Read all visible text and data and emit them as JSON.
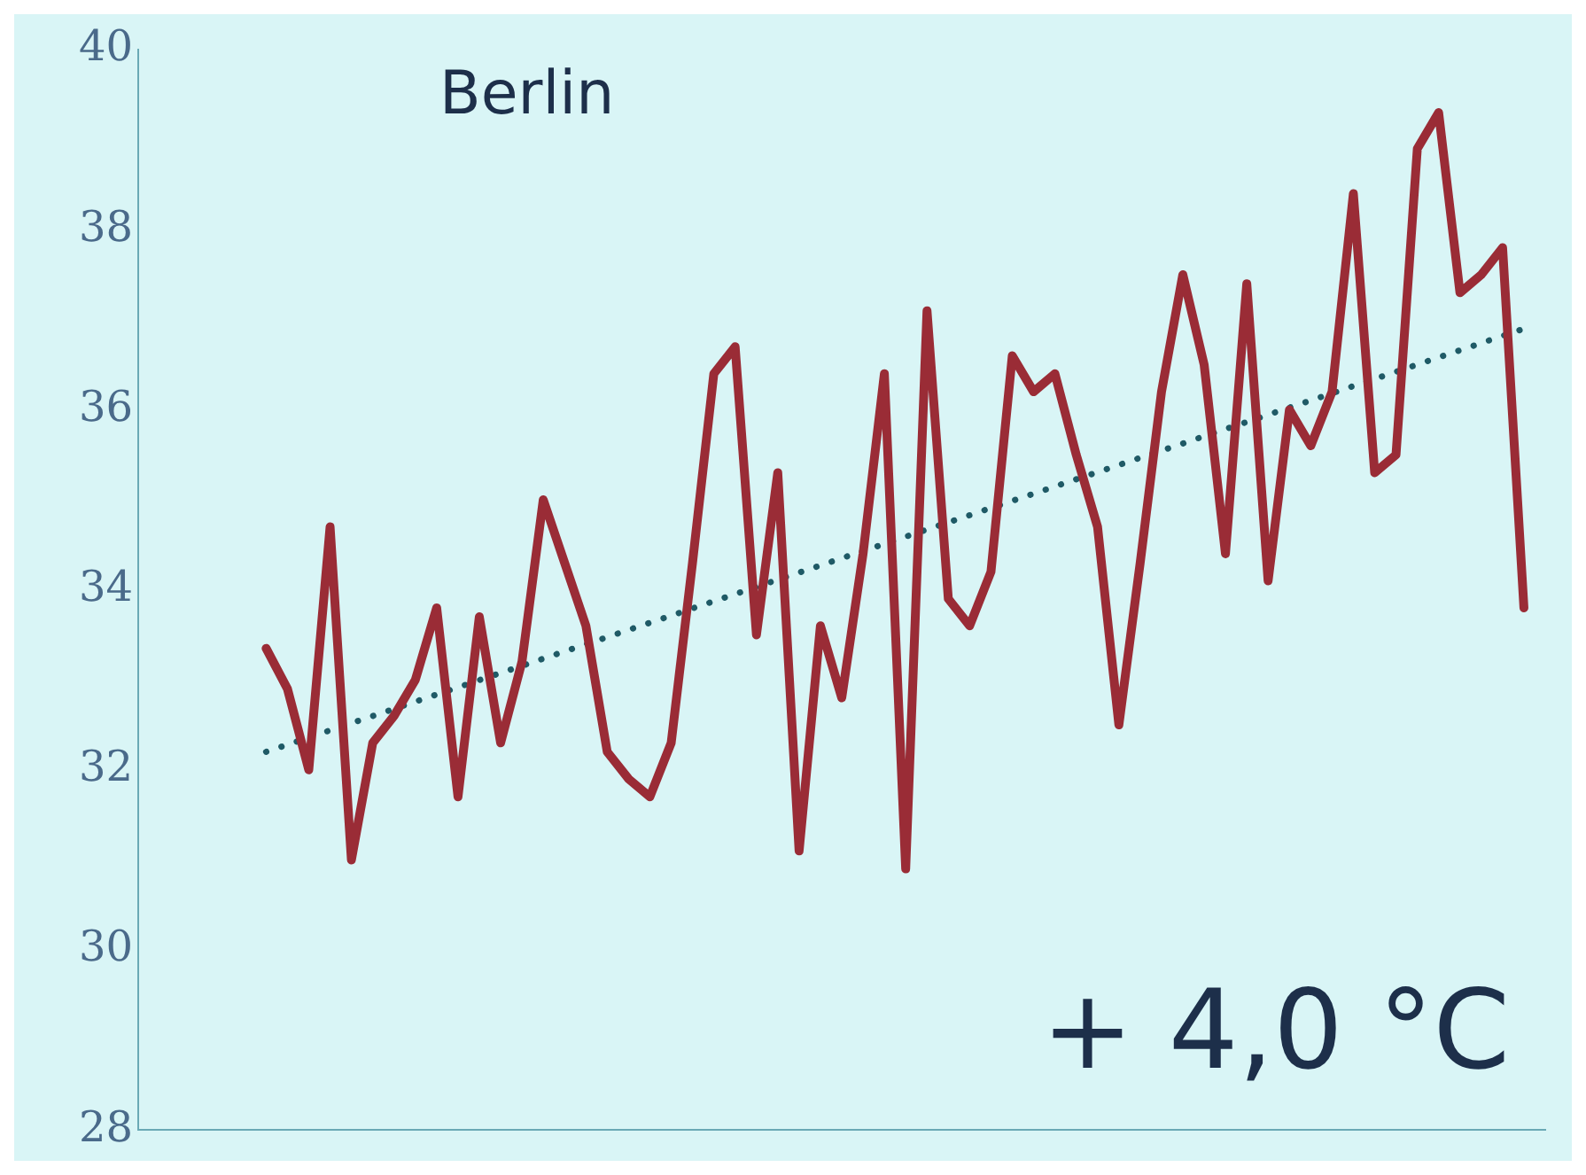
{
  "chart_data": {
    "type": "line",
    "categories": [
      null,
      null,
      null,
      null,
      null,
      null,
      null,
      null,
      null,
      null,
      null,
      null,
      null,
      null,
      null,
      null,
      null,
      null,
      null,
      null,
      null,
      null,
      null,
      null,
      null,
      null,
      null,
      null,
      null,
      null,
      null,
      null,
      null,
      null,
      null,
      null,
      null,
      null,
      null,
      null,
      null,
      null,
      null,
      null,
      null,
      null,
      null,
      null,
      null,
      null,
      null,
      null,
      null,
      null,
      null,
      null,
      null,
      null,
      null,
      null,
      null,
      null,
      null,
      null,
      null,
      null,
      null
    ],
    "series": [
      {
        "color": "#9a2c36",
        "line_style": "solid",
        "values": [
          null,
          null,
          null,
          null,
          null,
          null,
          33.35,
          32.9,
          32.0,
          34.7,
          31.0,
          32.3,
          32.6,
          33.0,
          33.8,
          31.7,
          33.7,
          32.3,
          33.2,
          35.0,
          34.3,
          33.6,
          32.2,
          31.9,
          31.7,
          32.3,
          34.3,
          36.4,
          36.7,
          33.5,
          35.3,
          31.1,
          33.6,
          32.8,
          34.4,
          36.4,
          30.9,
          37.1,
          33.9,
          33.6,
          34.2,
          36.6,
          36.2,
          36.4,
          35.5,
          34.7,
          32.5,
          34.3,
          36.2,
          37.5,
          36.5,
          34.4,
          37.4,
          34.1,
          36.0,
          35.6,
          36.2,
          38.4,
          35.3,
          35.5,
          38.9,
          39.3,
          37.3,
          37.5,
          37.8,
          33.8,
          null
        ]
      },
      {
        "color": "#1f5a66",
        "line_style": "dotted",
        "values": [
          null,
          null,
          null,
          null,
          null,
          null,
          32.2,
          null,
          null,
          null,
          null,
          null,
          null,
          null,
          null,
          null,
          null,
          null,
          null,
          null,
          null,
          null,
          null,
          null,
          null,
          null,
          null,
          null,
          null,
          null,
          null,
          null,
          null,
          null,
          null,
          null,
          null,
          null,
          null,
          null,
          null,
          null,
          null,
          null,
          null,
          null,
          null,
          null,
          null,
          null,
          null,
          null,
          null,
          null,
          null,
          null,
          null,
          null,
          null,
          null,
          null,
          null,
          null,
          null,
          null,
          36.9,
          null
        ]
      }
    ],
    "ylim": [
      28,
      40
    ],
    "yticks": [
      28,
      30,
      32,
      34,
      36,
      38,
      40
    ],
    "tick_labels": "y",
    "grid": false,
    "legend": false,
    "marker": "none",
    "annotations": [
      "Berlin",
      "+ 4,0 °C"
    ]
  }
}
